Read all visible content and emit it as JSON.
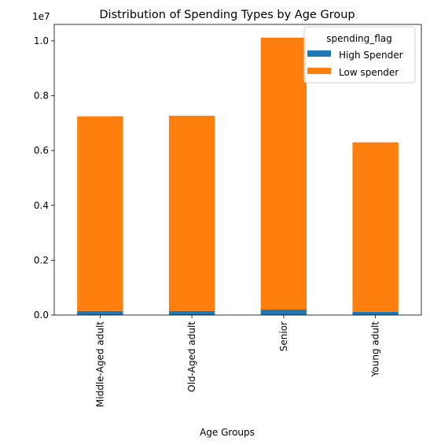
{
  "chart_data": {
    "type": "bar",
    "stacked": true,
    "title": "Distribution of Spending Types by Age Group",
    "xlabel": "Age Groups",
    "ylabel": "",
    "y_scale_label": "1e7",
    "y_multiplier": 10000000,
    "ylim": [
      0,
      10600000
    ],
    "y_ticks": [
      0,
      2000000,
      4000000,
      6000000,
      8000000,
      10000000
    ],
    "y_tick_labels": [
      "0.0",
      "0.2",
      "0.4",
      "0.6",
      "0.8",
      "1.0"
    ],
    "categories": [
      "Middle-Aged adult",
      "Old-Aged adult",
      "Senior",
      "Young adult"
    ],
    "series": [
      {
        "name": "High Spender",
        "color": "#1f77b4",
        "values": [
          150000,
          150000,
          200000,
          120000
        ]
      },
      {
        "name": "Low spender",
        "color": "#ff7f0e",
        "values": [
          7100000,
          7120000,
          9920000,
          6180000
        ]
      }
    ],
    "grid": false,
    "legend": {
      "title": "spending_flag",
      "placement": "top-right"
    }
  }
}
